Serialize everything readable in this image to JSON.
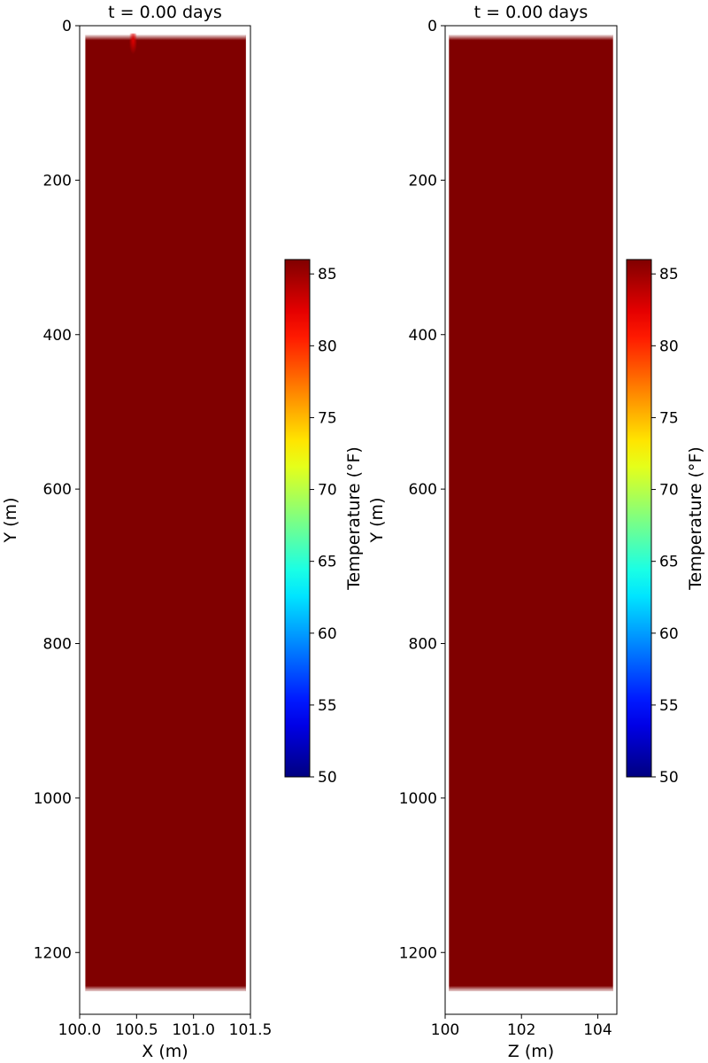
{
  "chart_data": [
    {
      "type": "heatmap",
      "title": "t = 0.00 days",
      "xlabel": "X (m)",
      "ylabel": "Y (m)",
      "xlim": [
        100.0,
        101.5
      ],
      "ylim": [
        1280,
        0
      ],
      "xticks": [
        "100.0",
        "100.5",
        "101.0",
        "101.5"
      ],
      "xtick_values": [
        100.0,
        100.5,
        101.0,
        101.5
      ],
      "yticks": [
        "0",
        "200",
        "400",
        "600",
        "800",
        "1000",
        "1200"
      ],
      "ytick_values": [
        0,
        200,
        400,
        600,
        800,
        1000,
        1200
      ],
      "domain": {
        "x": [
          100.05,
          101.46
        ],
        "y": [
          12,
          1250
        ]
      },
      "field_value": 86,
      "hot_spot": {
        "x": 100.47,
        "y": [
          10,
          40
        ],
        "value": 83
      },
      "colorbar": {
        "label": "Temperature (°F)",
        "range": [
          50,
          86
        ],
        "ticks": [
          "50",
          "55",
          "60",
          "65",
          "70",
          "75",
          "80",
          "85"
        ],
        "tick_values": [
          50,
          55,
          60,
          65,
          70,
          75,
          80,
          85
        ],
        "colormap": "jet"
      },
      "grid": false
    },
    {
      "type": "heatmap",
      "title": "t = 0.00 days",
      "xlabel": "Z (m)",
      "ylabel": "Y (m)",
      "xlim": [
        100,
        104.5
      ],
      "ylim": [
        1280,
        0
      ],
      "xticks": [
        "100",
        "102",
        "104"
      ],
      "xtick_values": [
        100,
        102,
        104
      ],
      "yticks": [
        "0",
        "200",
        "400",
        "600",
        "800",
        "1000",
        "1200"
      ],
      "ytick_values": [
        0,
        200,
        400,
        600,
        800,
        1000,
        1200
      ],
      "domain": {
        "x": [
          100.1,
          104.4
        ],
        "y": [
          12,
          1250
        ]
      },
      "field_value": 86,
      "colorbar": {
        "label": "Temperature (°F)",
        "range": [
          50,
          86
        ],
        "ticks": [
          "50",
          "55",
          "60",
          "65",
          "70",
          "75",
          "80",
          "85"
        ],
        "tick_values": [
          50,
          55,
          60,
          65,
          70,
          75,
          80,
          85
        ],
        "colormap": "jet"
      },
      "grid": false
    }
  ]
}
